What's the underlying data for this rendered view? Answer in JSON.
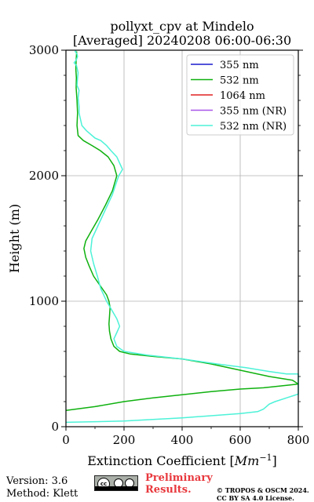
{
  "chart_data": {
    "type": "line",
    "title_line1": "pollyxt_cpv at Mindelo",
    "title_line2": "[Averaged] 20240208 06:00-06:30",
    "xlabel": "Extinction Coefficient [Mm⁻¹]",
    "xlabel_main": "Extinction Coefficient [",
    "xlabel_unit": "Mm",
    "xlabel_exp": "−1",
    "xlabel_end": "]",
    "ylabel": "Height (m)",
    "xlim": [
      0,
      800
    ],
    "ylim": [
      0,
      3000
    ],
    "xticks": [
      "0",
      "200",
      "400",
      "600",
      "800"
    ],
    "yticks": [
      "0",
      "1000",
      "2000",
      "3000"
    ],
    "grid": true,
    "legend_position": "top-right",
    "series": [
      {
        "name": "355 nm",
        "color": "#1a1acd",
        "x": [],
        "y": []
      },
      {
        "name": "532 nm",
        "color": "#0fb10f",
        "x": [
          0,
          100,
          200,
          300,
          400,
          500,
          600,
          680,
          760,
          800,
          780,
          700,
          600,
          500,
          400,
          300,
          220,
          185,
          165,
          155,
          150,
          148,
          150,
          152,
          148,
          140,
          125,
          110,
          95,
          80,
          68,
          62,
          68,
          85,
          110,
          135,
          160,
          175,
          165,
          145,
          118,
          90,
          60,
          42,
          38,
          40,
          38,
          35,
          36,
          34,
          35,
          37
        ],
        "y": [
          130,
          160,
          200,
          230,
          255,
          280,
          300,
          310,
          330,
          340,
          370,
          400,
          450,
          500,
          540,
          560,
          580,
          600,
          640,
          700,
          760,
          820,
          880,
          950,
          1000,
          1050,
          1100,
          1150,
          1200,
          1280,
          1350,
          1420,
          1480,
          1550,
          1650,
          1760,
          1880,
          2000,
          2080,
          2150,
          2200,
          2240,
          2280,
          2320,
          2400,
          2500,
          2600,
          2700,
          2780,
          2850,
          2920,
          2990
        ]
      },
      {
        "name": "1064 nm",
        "color": "#e02020",
        "x": [],
        "y": []
      },
      {
        "name": "355 nm (NR)",
        "color": "#a855e8",
        "x": [],
        "y": []
      },
      {
        "name": "532 nm (NR)",
        "color": "#4df2d8",
        "x": [
          0,
          200,
          400,
          600,
          660,
          680,
          690,
          700,
          720,
          760,
          800,
          800,
          760,
          700,
          620,
          520,
          400,
          280,
          200,
          175,
          165,
          175,
          185,
          175,
          160,
          150,
          140,
          120,
          108,
          95,
          85,
          90,
          100,
          120,
          140,
          160,
          170,
          182,
          195,
          185,
          175,
          155,
          140,
          120,
          100,
          70,
          55,
          50,
          45,
          45,
          42,
          45,
          38,
          40,
          42,
          38,
          36,
          28,
          35,
          40,
          38,
          32,
          35
        ],
        "y": [
          35,
          45,
          70,
          105,
          120,
          140,
          160,
          180,
          200,
          230,
          260,
          420,
          420,
          440,
          470,
          500,
          540,
          570,
          600,
          640,
          700,
          750,
          800,
          860,
          920,
          960,
          1000,
          1100,
          1200,
          1300,
          1400,
          1500,
          1550,
          1650,
          1750,
          1850,
          1920,
          2000,
          2050,
          2100,
          2150,
          2200,
          2240,
          2280,
          2300,
          2360,
          2400,
          2450,
          2500,
          2550,
          2620,
          2680,
          2720,
          2780,
          2820,
          2860,
          2880,
          2900,
          2920,
          2950,
          2970,
          2990,
          3000
        ]
      }
    ]
  },
  "footer": {
    "version": "Version: 3.6",
    "method": "Method: Klett",
    "preliminary_line1": "Preliminary",
    "preliminary_line2": "Results.",
    "copyright_line1": "© TROPOS & OSCM 2024.",
    "copyright_line2": "CC BY SA 4.0 License.",
    "license_badge_text": "cc"
  }
}
